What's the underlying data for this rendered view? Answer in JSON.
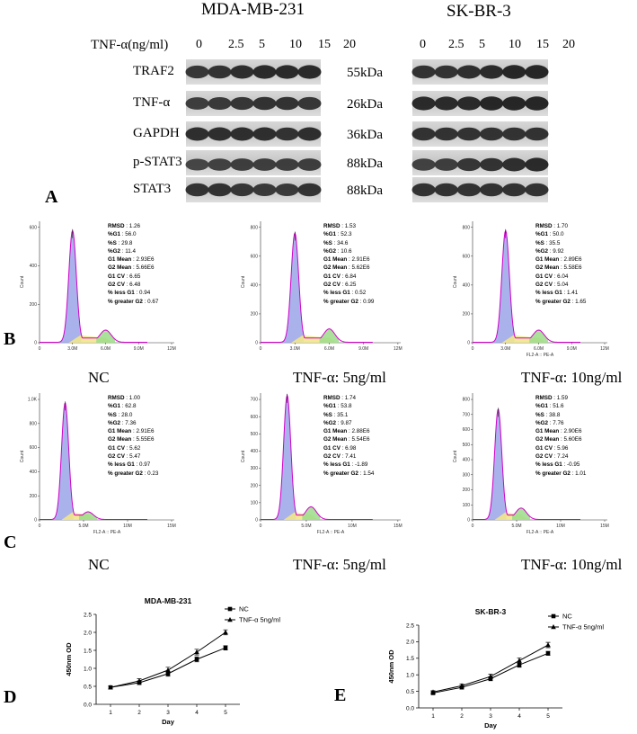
{
  "panel_letters": {
    "a": "A",
    "b": "B",
    "c": "C",
    "d": "D",
    "e": "E"
  },
  "western": {
    "cell_line_1": "MDA-MB-231",
    "cell_line_2": "SK-BR-3",
    "dose_label": "TNF-α(ng/ml)",
    "doses": [
      "0",
      "2.5",
      "5",
      "10",
      "15",
      "20"
    ],
    "bands": [
      {
        "protein": "TRAF2",
        "kda": "55kDa"
      },
      {
        "protein": "TNF-α",
        "kda": "26kDa"
      },
      {
        "protein": "GAPDH",
        "kda": "36kDa"
      },
      {
        "protein": "p-STAT3",
        "kda": "88kDa"
      },
      {
        "protein": "STAT3",
        "kda": "88kDa"
      }
    ],
    "band_intensity_left": [
      [
        0.55,
        0.6,
        0.65,
        0.7,
        0.7,
        0.7
      ],
      [
        0.45,
        0.5,
        0.55,
        0.6,
        0.6,
        0.55
      ],
      [
        0.65,
        0.65,
        0.65,
        0.65,
        0.6,
        0.65
      ],
      [
        0.35,
        0.4,
        0.45,
        0.45,
        0.45,
        0.45
      ],
      [
        0.6,
        0.6,
        0.55,
        0.5,
        0.5,
        0.6
      ]
    ],
    "band_intensity_right": [
      [
        0.6,
        0.6,
        0.65,
        0.7,
        0.75,
        0.75
      ],
      [
        0.7,
        0.7,
        0.7,
        0.75,
        0.75,
        0.75
      ],
      [
        0.6,
        0.6,
        0.6,
        0.6,
        0.6,
        0.6
      ],
      [
        0.4,
        0.45,
        0.55,
        0.6,
        0.65,
        0.7
      ],
      [
        0.6,
        0.6,
        0.6,
        0.6,
        0.6,
        0.6
      ]
    ]
  },
  "flow_rows": {
    "B": {
      "x_axis_label": "FL2-A :: PE-A",
      "y_axis_label": "Count",
      "plots": [
        {
          "condition": "NC",
          "y_ticks": [
            "0",
            "200",
            "400",
            "600"
          ],
          "x_ticks": [
            "0",
            "3.0M",
            "6.0M",
            "9.0M",
            "12M"
          ],
          "x_max": "12M",
          "show_x_label": false,
          "stats": [
            [
              "RMSD",
              "1.26"
            ],
            [
              "%G1",
              "56.0"
            ],
            [
              "%S",
              "29.8"
            ],
            [
              "%G2",
              "11.4"
            ],
            [
              "G1 Mean",
              "2.93E6"
            ],
            [
              "G2 Mean",
              "5.66E6"
            ],
            [
              "G1 CV",
              "6.65"
            ],
            [
              "G2 CV",
              "6.48"
            ],
            [
              "% less G1",
              "0.94"
            ],
            [
              "% greater G2",
              "0.67"
            ]
          ]
        },
        {
          "condition": "TNF-α: 5ng/ml",
          "y_ticks": [
            "0",
            "200",
            "400",
            "600",
            "800"
          ],
          "x_ticks": [
            "0",
            "3.0M",
            "6.0M",
            "9.0M",
            "12M"
          ],
          "x_max": "12M",
          "show_x_label": false,
          "stats": [
            [
              "RMSD",
              "1.53"
            ],
            [
              "%G1",
              "52.3"
            ],
            [
              "%S",
              "34.6"
            ],
            [
              "%G2",
              "10.6"
            ],
            [
              "G1 Mean",
              "2.91E6"
            ],
            [
              "G2 Mean",
              "5.62E6"
            ],
            [
              "G1 CV",
              "6.84"
            ],
            [
              "G2 CV",
              "6.25"
            ],
            [
              "% less G1",
              "0.52"
            ],
            [
              "% greater G2",
              "0.99"
            ]
          ]
        },
        {
          "condition": "TNF-α: 10ng/ml",
          "y_ticks": [
            "0",
            "200",
            "400",
            "600",
            "800"
          ],
          "x_ticks": [
            "0",
            "3.0M",
            "6.0M",
            "9.0M",
            "12M"
          ],
          "x_max": "12M",
          "show_x_label": true,
          "stats": [
            [
              "RMSD",
              "1.70"
            ],
            [
              "%G1",
              "50.0"
            ],
            [
              "%S",
              "35.5"
            ],
            [
              "%G2",
              "9.92"
            ],
            [
              "G1 Mean",
              "2.89E6"
            ],
            [
              "G2 Mean",
              "5.58E6"
            ],
            [
              "G1 CV",
              "6.04"
            ],
            [
              "G2 CV",
              "5.04"
            ],
            [
              "% less G1",
              "1.41"
            ],
            [
              "% greater G2",
              "1.65"
            ]
          ]
        }
      ]
    },
    "C": {
      "x_axis_label": "FL2-A :: PE-A",
      "y_axis_label": "Count",
      "plots": [
        {
          "condition": "NC",
          "y_ticks": [
            "0",
            "200",
            "400",
            "600",
            "800",
            "1.0K"
          ],
          "x_ticks": [
            "0",
            "5.0M",
            "10M",
            "15M"
          ],
          "show_x_label": true,
          "stats": [
            [
              "RMSD",
              "1.00"
            ],
            [
              "%G1",
              "62.8"
            ],
            [
              "%S",
              "28.0"
            ],
            [
              "%G2",
              "7.36"
            ],
            [
              "G1 Mean",
              "2.91E6"
            ],
            [
              "G2 Mean",
              "5.55E6"
            ],
            [
              "G1 CV",
              "5.62"
            ],
            [
              "G2 CV",
              "5.47"
            ],
            [
              "% less G1",
              "0.97"
            ],
            [
              "% greater G2",
              "0.23"
            ]
          ]
        },
        {
          "condition": "TNF-α: 5ng/ml",
          "y_ticks": [
            "0",
            "100",
            "200",
            "300",
            "400",
            "500",
            "600",
            "700"
          ],
          "x_ticks": [
            "0",
            "5.0M",
            "10M",
            "15M"
          ],
          "show_x_label": true,
          "stats": [
            [
              "RMSD",
              "1.74"
            ],
            [
              "%G1",
              "53.8"
            ],
            [
              "%S",
              "35.1"
            ],
            [
              "%G2",
              "9.87"
            ],
            [
              "G1 Mean",
              "2.88E6"
            ],
            [
              "G2 Mean",
              "5.54E6"
            ],
            [
              "G1 CV",
              "6.98"
            ],
            [
              "G2 CV",
              "7.41"
            ],
            [
              "% less G1",
              "-1.89"
            ],
            [
              "% greater G2",
              "1.54"
            ]
          ]
        },
        {
          "condition": "TNF-α: 10ng/ml",
          "y_ticks": [
            "0",
            "100",
            "200",
            "300",
            "400",
            "500",
            "600",
            "700",
            "800"
          ],
          "x_ticks": [
            "0",
            "5.0M",
            "10M",
            "15M"
          ],
          "show_x_label": true,
          "stats": [
            [
              "RMSD",
              "1.59"
            ],
            [
              "%G1",
              "51.6"
            ],
            [
              "%S",
              "38.8"
            ],
            [
              "%G2",
              "7.76"
            ],
            [
              "G1 Mean",
              "2.90E6"
            ],
            [
              "G2 Mean",
              "5.60E6"
            ],
            [
              "G1 CV",
              "5.96"
            ],
            [
              "G2 CV",
              "7.24"
            ],
            [
              "% less G1",
              "-0.95"
            ],
            [
              "% greater G2",
              "1.01"
            ]
          ]
        }
      ]
    }
  },
  "chart_data": [
    {
      "type": "line",
      "title": "MDA-MB-231",
      "xlabel": "Day",
      "ylabel": "450nm OD",
      "x": [
        1,
        2,
        3,
        4,
        5
      ],
      "ylim": [
        0,
        2.5
      ],
      "yticks": [
        "0.0",
        "0.5",
        "1.0",
        "1.5",
        "2.0",
        "2.5"
      ],
      "xticks": [
        "1",
        "2",
        "3",
        "4",
        "5"
      ],
      "series": [
        {
          "name": "NC",
          "marker": "square",
          "values": [
            0.47,
            0.6,
            0.85,
            1.25,
            1.57
          ],
          "err": [
            0.04,
            0.05,
            0.07,
            0.07,
            0.06
          ]
        },
        {
          "name": "TNF-α 5ng/ml",
          "marker": "triangle",
          "values": [
            0.47,
            0.65,
            0.95,
            1.45,
            2.0
          ],
          "err": [
            0.04,
            0.06,
            0.08,
            0.08,
            0.07
          ]
        }
      ]
    },
    {
      "type": "line",
      "title": "SK-BR-3",
      "xlabel": "Day",
      "ylabel": "450nm OD",
      "x": [
        1,
        2,
        3,
        4,
        5
      ],
      "ylim": [
        0,
        2.5
      ],
      "yticks": [
        "0.0",
        "0.5",
        "1.0",
        "1.5",
        "2.0",
        "2.5"
      ],
      "xticks": [
        "1",
        "2",
        "3",
        "4",
        "5"
      ],
      "series": [
        {
          "name": "NC",
          "marker": "square",
          "values": [
            0.45,
            0.62,
            0.88,
            1.3,
            1.65
          ],
          "err": [
            0.04,
            0.05,
            0.06,
            0.07,
            0.06
          ]
        },
        {
          "name": "TNF-α 5ng/ml",
          "marker": "triangle",
          "values": [
            0.48,
            0.67,
            0.95,
            1.43,
            1.9
          ],
          "err": [
            0.04,
            0.05,
            0.07,
            0.08,
            0.08
          ]
        }
      ]
    }
  ]
}
